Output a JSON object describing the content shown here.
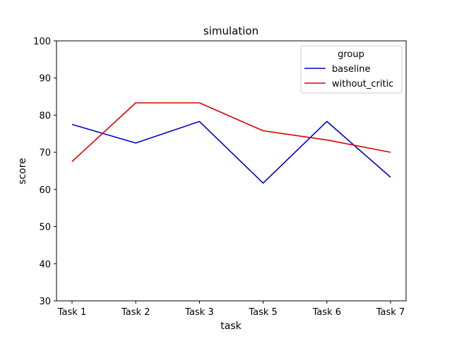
{
  "chart_data": {
    "type": "line",
    "title": "simulation",
    "xlabel": "task",
    "ylabel": "score",
    "categories": [
      "Task 1",
      "Task 2",
      "Task 3",
      "Task 5",
      "Task 6",
      "Task 7"
    ],
    "ylim": [
      30,
      100
    ],
    "yticks": [
      30,
      40,
      50,
      60,
      70,
      80,
      90,
      100
    ],
    "grid": false,
    "legend": {
      "title": "group",
      "placement": "top-right"
    },
    "series": [
      {
        "name": "baseline",
        "color": "#0000cc",
        "values": [
          77.5,
          72.5,
          78.3,
          61.7,
          78.3,
          63.3
        ]
      },
      {
        "name": "without_critic",
        "color": "#dd0000",
        "values": [
          67.5,
          83.3,
          83.3,
          75.8,
          73.3,
          70.0
        ]
      }
    ]
  }
}
